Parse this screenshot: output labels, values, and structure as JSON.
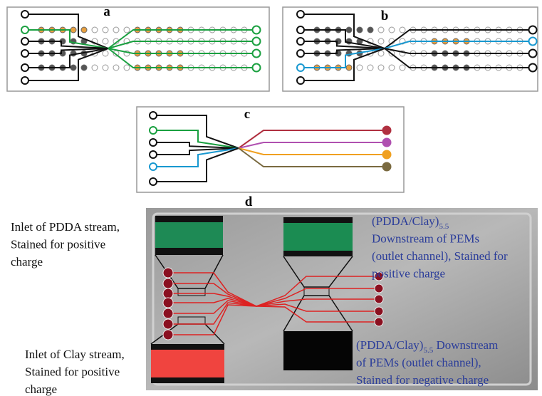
{
  "panels": [
    {
      "label": "a"
    },
    {
      "label": "b"
    },
    {
      "label": "c"
    },
    {
      "label": "d"
    }
  ],
  "annotations": [
    {
      "lines": [
        "Inlet of PDDA stream,",
        "Stained for positive",
        "charge"
      ]
    },
    {
      "formula": "(PDDA/Clay)",
      "subscript": "5.5",
      "lines": [
        "Downstream of PEMs",
        "(outlet channel), Stained for",
        "positive charge"
      ]
    },
    {
      "lines": [
        "Inlet of Clay stream,",
        "Stained for positive",
        "charge"
      ]
    },
    {
      "formula": "(PDDA/Clay)",
      "subscript": "5.5",
      "rest": " Downstream",
      "lines": [
        "of PEMs (outlet channel),",
        "Stained for negative charge"
      ]
    }
  ]
}
